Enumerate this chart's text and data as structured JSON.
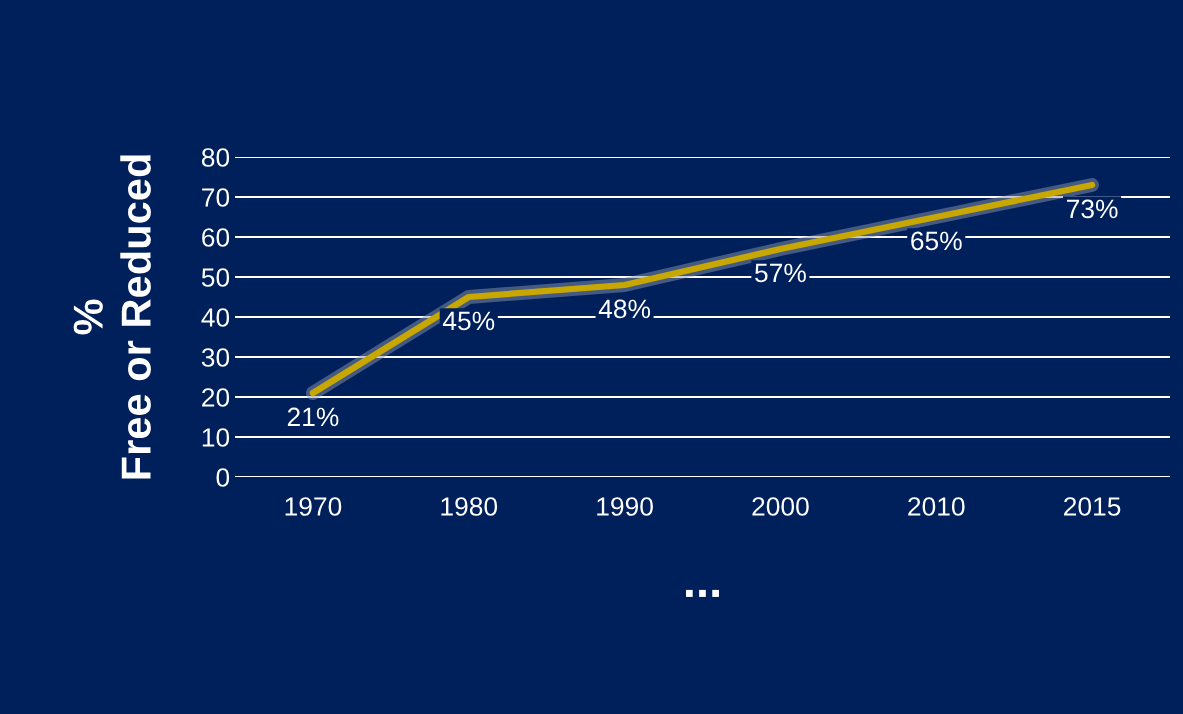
{
  "chart_data": {
    "type": "line",
    "ylabel": "%\nFree or Reduced",
    "xlabel": "...",
    "categories": [
      "1970",
      "1980",
      "1990",
      "2000",
      "2010",
      "2015"
    ],
    "series": [
      {
        "color": "#c8a800",
        "values": [
          21,
          45,
          48,
          57,
          65,
          73
        ],
        "value_labels": [
          "21%",
          "45%",
          "48%",
          "57%",
          "65%",
          "73%"
        ]
      }
    ],
    "ylim": [
      0,
      80
    ],
    "yticks": [
      0,
      10,
      20,
      30,
      40,
      50,
      60,
      70,
      80
    ],
    "grid": "y",
    "marker": "none",
    "line_style": "solid",
    "legend": false
  }
}
